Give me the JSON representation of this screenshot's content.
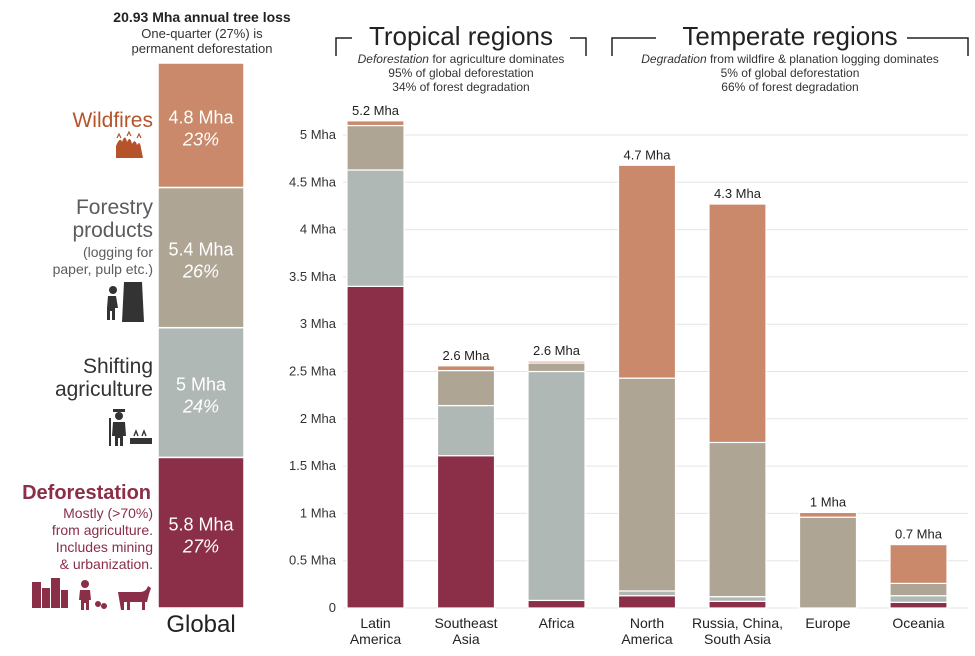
{
  "global": {
    "title": "20.93 Mha annual tree loss",
    "subtitle_lines": [
      "One-quarter (27%) is",
      "permanent deforestation"
    ],
    "label": "Global",
    "segments": [
      {
        "key": "wildfires",
        "name": "Wildfires",
        "desc_lines": [],
        "value": 4.8,
        "value_label": "4.8 Mha",
        "pct": "23%",
        "color": "#c9896a",
        "label_color": "#b5532a",
        "icon": "wildfire-icon"
      },
      {
        "key": "forestry",
        "name": "Forestry",
        "name2": "products",
        "desc_lines": [
          "(logging for",
          "paper, pulp etc.)"
        ],
        "value": 5.4,
        "value_label": "5.4 Mha",
        "pct": "26%",
        "color": "#afa595",
        "label_color": "#5c5c5c",
        "icon": "logger-icon"
      },
      {
        "key": "shifting",
        "name": "Shifting",
        "name2": "agriculture",
        "desc_lines": [],
        "value": 5.0,
        "value_label": "5 Mha",
        "pct": "24%",
        "color": "#b0b8b5",
        "label_color": "#333333",
        "icon": "farmer-icon"
      },
      {
        "key": "deforestation",
        "name": "Deforestation",
        "desc_lines": [
          "Mostly (>70%)",
          "from agriculture.",
          "Includes mining",
          "& urbanization."
        ],
        "value": 5.8,
        "value_label": "5.8 Mha",
        "pct": "27%",
        "color": "#8b2e48",
        "label_color": "#8b2e48",
        "icon": "mining-urban-agriculture-icon"
      }
    ]
  },
  "groups": [
    {
      "key": "tropical",
      "title": "Tropical regions",
      "sub_italic": "Deforestation",
      "sub_rest": " for agriculture dominates",
      "lines": [
        "95% of global deforestation",
        "34% of forest degradation"
      ]
    },
    {
      "key": "temperate",
      "title": "Temperate regions",
      "sub_italic": "Degradation",
      "sub_rest": " from wildfire & planation logging dominates",
      "lines": [
        "5% of global deforestation",
        "66% of forest degradation"
      ]
    }
  ],
  "chart_data": {
    "type": "bar",
    "stacked": true,
    "ylim": [
      0,
      5.2
    ],
    "yticks": [
      {
        "v": 0,
        "label": "0"
      },
      {
        "v": 0.5,
        "label": "0.5 Mha"
      },
      {
        "v": 1,
        "label": "1 Mha"
      },
      {
        "v": 1.5,
        "label": "1.5 Mha"
      },
      {
        "v": 2,
        "label": "2 Mha"
      },
      {
        "v": 2.5,
        "label": "2.5 Mha"
      },
      {
        "v": 3,
        "label": "3 Mha"
      },
      {
        "v": 3.5,
        "label": "3.5 Mha"
      },
      {
        "v": 4,
        "label": "4 Mha"
      },
      {
        "v": 4.5,
        "label": "4.5 Mha"
      },
      {
        "v": 5,
        "label": "5 Mha"
      }
    ],
    "grid": true,
    "series_order": [
      "deforestation",
      "shifting",
      "forestry",
      "wildfires"
    ],
    "colors": {
      "deforestation": "#8b2e48",
      "shifting": "#b0b8b5",
      "forestry": "#afa595",
      "wildfires": "#c9896a"
    },
    "categories": [
      {
        "lines": [
          "Latin",
          "America"
        ],
        "total_label": "5.2 Mha",
        "values": {
          "deforestation": 3.4,
          "shifting": 1.23,
          "forestry": 0.47,
          "wildfires": 0.05
        }
      },
      {
        "lines": [
          "Southeast",
          "Asia"
        ],
        "total_label": "2.6 Mha",
        "values": {
          "deforestation": 1.61,
          "shifting": 0.53,
          "forestry": 0.37,
          "wildfires": 0.05
        }
      },
      {
        "lines": [
          "Africa"
        ],
        "total_label": "2.6 Mha",
        "values": {
          "deforestation": 0.08,
          "shifting": 2.42,
          "forestry": 0.09,
          "wildfires": 0.02
        }
      },
      {
        "lines": [
          "North",
          "America"
        ],
        "total_label": "4.7 Mha",
        "values": {
          "deforestation": 0.13,
          "shifting": 0.05,
          "forestry": 2.25,
          "wildfires": 2.25
        }
      },
      {
        "lines": [
          "Russia, China,",
          "South Asia"
        ],
        "total_label": "4.3 Mha",
        "values": {
          "deforestation": 0.07,
          "shifting": 0.05,
          "forestry": 1.63,
          "wildfires": 2.52
        }
      },
      {
        "lines": [
          "Europe"
        ],
        "total_label": "1 Mha",
        "values": {
          "deforestation": 0.0,
          "shifting": 0.0,
          "forestry": 0.96,
          "wildfires": 0.05
        }
      },
      {
        "lines": [
          "Oceania"
        ],
        "total_label": "0.7 Mha",
        "values": {
          "deforestation": 0.06,
          "shifting": 0.07,
          "forestry": 0.13,
          "wildfires": 0.41
        }
      }
    ]
  }
}
